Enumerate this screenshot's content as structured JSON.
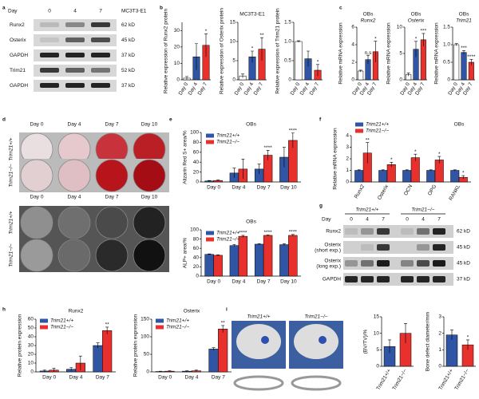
{
  "panel_labels": [
    "a",
    "b",
    "c",
    "d",
    "e",
    "f",
    "g",
    "h",
    "i"
  ],
  "blot_a": {
    "header": "Day",
    "lanes": [
      "0",
      "4",
      "7"
    ],
    "cell": "MC3T3-E1",
    "rows": [
      {
        "name": "Runx2",
        "size": "62 kD"
      },
      {
        "name": "Osterix",
        "size": "45 kD"
      },
      {
        "name": "GAPDH",
        "size": "37 kD"
      },
      {
        "name": "Trim21",
        "size": "52 kD"
      },
      {
        "name": "GAPDH",
        "size": "37 kD"
      }
    ]
  },
  "images_d": {
    "columns": [
      "Day 0",
      "Day 4",
      "Day 7",
      "Day 10"
    ],
    "rows": [
      "Trim21+/+",
      "Trim21−/−",
      "Trim21+/+",
      "Trim21−/−"
    ]
  },
  "blot_g": {
    "groups": [
      "Trim21+/+",
      "Trim21−/−"
    ],
    "header": "Day",
    "lanes": [
      "0",
      "4",
      "7",
      "0",
      "4",
      "7"
    ],
    "rows": [
      {
        "name": "Runx2",
        "size": "62 kD"
      },
      {
        "name": "Osterix",
        "note": "(short exp.)",
        "size": "45 kD"
      },
      {
        "name": "Osterix",
        "note": "(long exp.)",
        "size": "45 kD"
      },
      {
        "name": "GAPDH",
        "size": "37 kD"
      }
    ]
  },
  "images_i": {
    "labels": [
      "Trim21+/+",
      "Trim21−/−"
    ]
  },
  "chart_data": [
    {
      "type": "bar",
      "ylabel": "Relative expression of Runx2 protein",
      "categories": [
        "Day 0",
        "Day 4",
        "Day 7"
      ],
      "series": [
        {
          "colors": [
            "#ffffff",
            "#2f55a4",
            "#e8302c"
          ],
          "values": [
            1,
            14,
            21
          ],
          "errors": [
            1,
            8,
            7
          ],
          "annotations": [
            null,
            null,
            "*"
          ]
        }
      ],
      "ylim": [
        0,
        35
      ],
      "yticks": [
        0,
        10,
        20,
        30
      ]
    },
    {
      "type": "bar",
      "title": "MC3T3-E1",
      "ylabel": "Relative expression of Osterix protein",
      "categories": [
        "Day 0",
        "Day 4",
        "Day 7"
      ],
      "series": [
        {
          "colors": [
            "#ffffff",
            "#2f55a4",
            "#e8302c"
          ],
          "values": [
            1,
            6,
            8
          ],
          "errors": [
            0.5,
            1.5,
            3
          ],
          "annotations": [
            null,
            "*",
            "**"
          ]
        }
      ],
      "ylim": [
        0,
        15
      ],
      "yticks": [
        0,
        5,
        10,
        15
      ]
    },
    {
      "type": "bar",
      "ylabel": "Relative expression of Trim21 protein",
      "categories": [
        "Day 0",
        "Day 4",
        "Day 7"
      ],
      "series": [
        {
          "colors": [
            "#ffffff",
            "#2f55a4",
            "#e8302c"
          ],
          "values": [
            1,
            0.55,
            0.25
          ],
          "errors": [
            0.02,
            0.2,
            0.15
          ],
          "annotations": [
            null,
            null,
            "*"
          ]
        }
      ],
      "ylim": [
        0,
        1.5
      ],
      "yticks": [
        0,
        0.5,
        {
          "value": 1,
          "label": "1.0"
        },
        1.5
      ]
    },
    {
      "type": "bar",
      "title": "OBs",
      "subtitle": "Runx2",
      "ylabel": "Relative mRNA expression",
      "categories": [
        "Day 0",
        "Day 4",
        "Day 7"
      ],
      "series": [
        {
          "colors": [
            "#ffffff",
            "#2f55a4",
            "#e8302c"
          ],
          "values": [
            1,
            2.3,
            3.2
          ],
          "errors": [
            0.1,
            0.5,
            1.2
          ],
          "annotations": [
            null,
            "n.s",
            "*"
          ]
        }
      ],
      "ylim": [
        0,
        6
      ],
      "yticks": [
        0,
        2,
        4,
        6
      ]
    },
    {
      "type": "bar",
      "title": "OBs",
      "subtitle": "Osterix",
      "ylabel": "Relative mRNA expression",
      "categories": [
        "Day 0",
        "Day 4",
        "Day 7"
      ],
      "series": [
        {
          "colors": [
            "#ffffff",
            "#2f55a4",
            "#e8302c"
          ],
          "values": [
            1,
            5.8,
            7.6
          ],
          "errors": [
            0.3,
            1.5,
            1.2
          ],
          "annotations": [
            null,
            "*",
            "***"
          ]
        }
      ],
      "ylim": [
        0,
        10
      ],
      "yticks": [
        0,
        5,
        10
      ]
    },
    {
      "type": "bar",
      "title": "OBs",
      "subtitle": "Trim21",
      "ylabel": "Relative mRNA expression",
      "categories": [
        "Day 0",
        "Day 4",
        "Day 7"
      ],
      "series": [
        {
          "colors": [
            "#ffffff",
            "#2f55a4",
            "#e8302c"
          ],
          "values": [
            1,
            0.78,
            0.5
          ],
          "errors": [
            0.03,
            0.05,
            0.08
          ],
          "annotations": [
            null,
            "***",
            "****"
          ]
        }
      ],
      "ylim": [
        0,
        1.5
      ],
      "yticks": [
        0,
        0.5,
        {
          "value": 1,
          "label": "1.0"
        },
        1.5
      ]
    },
    {
      "type": "bar",
      "title": "OBs",
      "ylabel": "Alizarin Red S+ area/%",
      "categories": [
        "Day 0",
        "Day 4",
        "Day 7",
        "Day 10"
      ],
      "legend": "upper left",
      "series": [
        {
          "name": "Trim21+/+",
          "color": "#2f55a4",
          "values": [
            2,
            18,
            26,
            50
          ],
          "errors": [
            1,
            10,
            10,
            20
          ],
          "annotations": [
            null,
            null,
            null,
            null
          ]
        },
        {
          "name": "Trim21−/−",
          "color": "#e8302c",
          "values": [
            3,
            26,
            54,
            84
          ],
          "errors": [
            1,
            20,
            10,
            15
          ],
          "annotations": [
            null,
            null,
            "****",
            "****"
          ]
        }
      ],
      "ylim": [
        0,
        100
      ],
      "yticks": [
        0,
        20,
        40,
        60,
        80,
        100
      ]
    },
    {
      "type": "bar",
      "title": "OBs",
      "ylabel": "ALP+ area/%",
      "categories": [
        "Day 0",
        "Day 4",
        "Day 7",
        "Day 10"
      ],
      "legend": "upper left",
      "series": [
        {
          "name": "Trim21+/+",
          "color": "#2f55a4",
          "values": [
            47,
            66,
            69,
            68
          ],
          "errors": [
            1,
            2,
            1,
            2
          ],
          "annotations": [
            null,
            null,
            null,
            null
          ]
        },
        {
          "name": "Trim21−/−",
          "color": "#e8302c",
          "values": [
            45,
            86,
            88,
            88
          ],
          "errors": [
            1,
            2,
            1,
            2
          ],
          "annotations": [
            null,
            "****",
            "****",
            "****"
          ]
        }
      ],
      "ylim": [
        0,
        100
      ],
      "yticks": [
        0,
        20,
        40,
        60,
        80,
        100
      ]
    },
    {
      "type": "bar",
      "title": "OBs",
      "ylabel": "Relative mRNA expression",
      "categories": [
        "Runx2",
        "Osterix",
        "OCN",
        "OPG",
        "RANKL"
      ],
      "legend": "upper left",
      "series": [
        {
          "name": "Trim21+/+",
          "color": "#2f55a4",
          "values": [
            1,
            1,
            1,
            1,
            1
          ],
          "errors": [
            0.05,
            0.05,
            0.05,
            0.05,
            0.05
          ],
          "annotations": [
            null,
            null,
            null,
            null,
            null
          ]
        },
        {
          "name": "Trim21−/−",
          "color": "#e8302c",
          "values": [
            2.5,
            1.5,
            2.1,
            1.9,
            0.4
          ],
          "errors": [
            0.9,
            0.2,
            0.3,
            0.3,
            0.15
          ],
          "annotations": [
            "**",
            "*",
            "*",
            "*",
            "*"
          ]
        }
      ],
      "ylim": [
        0,
        4
      ],
      "yticks": [
        0,
        1,
        2,
        3,
        4
      ]
    },
    {
      "type": "bar",
      "title": "Runx2",
      "ylabel": "Relative protein expression",
      "categories": [
        "Day 0",
        "Day 4",
        "Day 7"
      ],
      "legend": "upper left",
      "series": [
        {
          "name": "Trim21+/+",
          "color": "#2f55a4",
          "values": [
            1,
            3,
            30
          ],
          "errors": [
            1,
            2,
            3
          ],
          "annotations": [
            null,
            null,
            null
          ]
        },
        {
          "name": "Trim21−/−",
          "color": "#e8302c",
          "values": [
            2,
            10,
            47
          ],
          "errors": [
            2,
            8,
            4
          ],
          "annotations": [
            null,
            null,
            "**"
          ]
        }
      ],
      "ylim": [
        0,
        60
      ],
      "yticks": [
        0,
        10,
        20,
        30,
        40,
        50,
        60
      ]
    },
    {
      "type": "bar",
      "title": "Osterix",
      "ylabel": "Relative protein expression",
      "categories": [
        "Day 0",
        "Day 4",
        "Day 7"
      ],
      "legend": "upper left",
      "series": [
        {
          "name": "Trim21+/+",
          "color": "#2f55a4",
          "values": [
            1,
            2,
            65
          ],
          "errors": [
            1,
            1,
            4
          ],
          "annotations": [
            null,
            null,
            null
          ]
        },
        {
          "name": "Trim21−/−",
          "color": "#e8302c",
          "values": [
            2,
            3,
            122
          ],
          "errors": [
            1,
            2,
            10
          ],
          "annotations": [
            null,
            null,
            "**"
          ]
        }
      ],
      "ylim": [
        0,
        150
      ],
      "yticks": [
        0,
        50,
        100,
        150
      ]
    },
    {
      "type": "bar",
      "ylabel": "(BV/TV)/%",
      "categories": [
        "Trim21+/+",
        "Trim21−/−"
      ],
      "series": [
        {
          "colors": [
            "#2f55a4",
            "#e8302c"
          ],
          "values": [
            6,
            10
          ],
          "errors": [
            2,
            3
          ],
          "annotations": [
            null,
            null
          ]
        }
      ],
      "ylim": [
        0,
        15
      ],
      "yticks": [
        0,
        5,
        10,
        15
      ]
    },
    {
      "type": "bar",
      "ylabel": "Bone defect diameter/mm",
      "categories": [
        "Trim21+/+",
        "Trim21−/−"
      ],
      "series": [
        {
          "colors": [
            "#2f55a4",
            "#e8302c"
          ],
          "values": [
            1.9,
            1.3
          ],
          "errors": [
            0.3,
            0.3
          ],
          "annotations": [
            null,
            "*"
          ]
        }
      ],
      "ylim": [
        0,
        3
      ],
      "yticks": [
        0,
        1,
        2,
        3
      ]
    }
  ]
}
